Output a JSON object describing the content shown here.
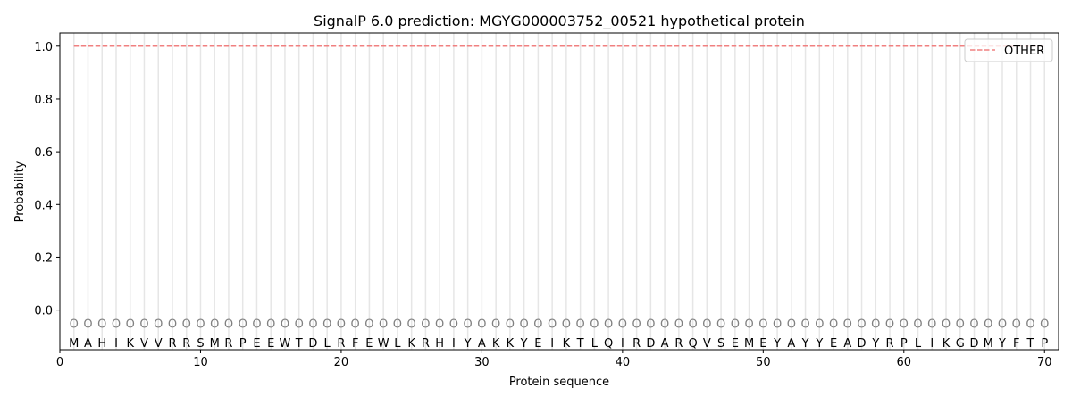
{
  "chart_data": {
    "type": "line",
    "title": "SignalP 6.0 prediction: MGYG000003752_00521 hypothetical protein",
    "xlabel": "Protein sequence",
    "ylabel": "Probability",
    "xlim": [
      0,
      71
    ],
    "ylim": [
      -0.15,
      1.05
    ],
    "xticks": [
      0,
      10,
      20,
      30,
      40,
      50,
      60,
      70
    ],
    "yticks": [
      0.0,
      0.2,
      0.4,
      0.6,
      0.8,
      1.0
    ],
    "ytick_labels": [
      "0.0",
      "0.2",
      "0.4",
      "0.6",
      "0.8",
      "1.0"
    ],
    "grid": "vertical lines at each residue",
    "legend_placement": "top-right",
    "sequence": "MAHIKVVRRSMRPEEWTDLRFEWLKRHIYAKKYEIKTLQIRDARQVSEMEYAYYEADYRPLIKGDMYFTP",
    "label_marker": "O",
    "series": [
      {
        "name": "OTHER",
        "color": "#f08080",
        "style": "dashed",
        "x_start": 1,
        "x_end": 70,
        "value": 1.0
      }
    ]
  }
}
